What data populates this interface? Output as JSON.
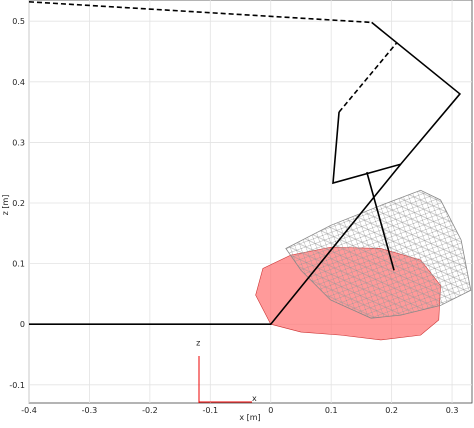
{
  "chart_data": {
    "type": "line",
    "xlabel": "x [m]",
    "ylabel": "z [m]",
    "xlim": [
      -0.4,
      0.333
    ],
    "ylim": [
      -0.13,
      0.535
    ],
    "xticks": [
      -0.4,
      -0.3,
      -0.2,
      -0.1,
      0,
      0.1,
      0.2,
      0.3
    ],
    "yticks": [
      -0.1,
      0,
      0.1,
      0.2,
      0.3,
      0.4,
      0.5
    ],
    "grid": true,
    "annotations": [
      {
        "text": "z",
        "x": -0.12,
        "y": -0.035
      },
      {
        "text": "x",
        "x": -0.027,
        "y": -0.127
      }
    ],
    "series": [
      {
        "color": "#ff6f6f",
        "style": "filled",
        "x": [
          0,
          -0.025,
          -0.013,
          0.033,
          0.099,
          0.182,
          0.248,
          0.281,
          0.278,
          0.248,
          0.182,
          0.116,
          0.05
        ],
        "values": [
          0,
          0.048,
          0.092,
          0.114,
          0.127,
          0.125,
          0.106,
          0.064,
          0.007,
          -0.018,
          -0.026,
          -0.018,
          -0.013
        ]
      },
      {
        "color": "#888888",
        "style": "mesh",
        "x": [
          0.025,
          0.099,
          0.182,
          0.248,
          0.281,
          0.315,
          0.331,
          0.281,
          0.215,
          0.166,
          0.099,
          0.05
        ],
        "values": [
          0.125,
          0.163,
          0.196,
          0.221,
          0.205,
          0.139,
          0.056,
          0.031,
          0.015,
          0.01,
          0.04,
          0.089
        ]
      },
      {
        "color": "#000000",
        "style": "dashed",
        "x": [
          -0.4,
          0.167
        ],
        "values": [
          0.532,
          0.498
        ]
      },
      {
        "color": "#000000",
        "style": "solid",
        "x": [
          0.167,
          0.313,
          0.215,
          0.103,
          0.113
        ],
        "values": [
          0.498,
          0.38,
          0.264,
          0.233,
          0.35
        ]
      },
      {
        "color": "#000000",
        "style": "dashed",
        "x": [
          0.113,
          0.209
        ],
        "values": [
          0.35,
          0.465
        ]
      },
      {
        "color": "#000000",
        "style": "solid",
        "x": [
          -0.4,
          0,
          0.215
        ],
        "values": [
          0,
          0,
          0.264
        ]
      },
      {
        "color": "#000000",
        "style": "solid",
        "x": [
          0.159,
          0.204
        ],
        "values": [
          0.251,
          0.089
        ]
      }
    ]
  }
}
